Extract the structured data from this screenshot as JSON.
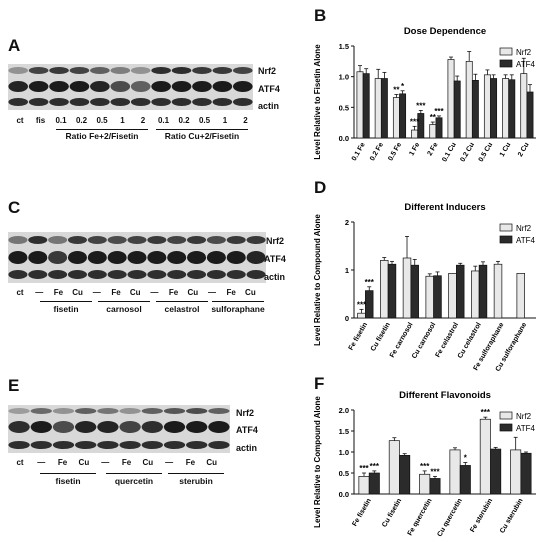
{
  "panels": {
    "A": {
      "letter": "A",
      "bands": [
        "Nrf2",
        "ATF4",
        "actin"
      ],
      "lanes": [
        "ct",
        "fis",
        "0.1",
        "0.2",
        "0.5",
        "1",
        "2",
        "0.1",
        "0.2",
        "0.5",
        "1",
        "2"
      ],
      "groups": [
        "Ratio Fe+2/Fisetin",
        "Ratio Cu+2/Fisetin"
      ]
    },
    "C": {
      "letter": "C",
      "bands": [
        "Nrf2",
        "ATF4",
        "actin"
      ],
      "lanes": [
        "ct",
        "—",
        "Fe",
        "Cu",
        "—",
        "Fe",
        "Cu",
        "—",
        "Fe",
        "Cu",
        "—",
        "Fe",
        "Cu"
      ],
      "groups": [
        "fisetin",
        "carnosol",
        "celastrol",
        "sulforaphane"
      ]
    },
    "E": {
      "letter": "E",
      "bands": [
        "Nrf2",
        "ATF4",
        "actin"
      ],
      "lanes": [
        "ct",
        "—",
        "Fe",
        "Cu",
        "—",
        "Fe",
        "Cu",
        "—",
        "Fe",
        "Cu"
      ],
      "groups": [
        "fisetin",
        "quercetin",
        "sterubin"
      ]
    },
    "B": {
      "letter": "B"
    },
    "D": {
      "letter": "D"
    },
    "F": {
      "letter": "F"
    }
  },
  "chart_data": [
    {
      "id": "B",
      "type": "bar",
      "title": "Dose Dependence",
      "ylabel": "Level Relative to Fisetin Alone",
      "ylim": [
        0,
        1.5
      ],
      "yticks": [
        "0.0",
        "0.5",
        "1.0",
        "1.5"
      ],
      "categories": [
        "0.1 Fe",
        "0.2 Fe",
        "0.5 Fe",
        "1 Fe",
        "2 Fe",
        "0.1 Cu",
        "0.2 Cu",
        "0.5 Cu",
        "1 Cu",
        "2 Cu"
      ],
      "series": [
        {
          "name": "Nrf2",
          "color": "#e8e8e8",
          "values": [
            1.08,
            0.97,
            0.66,
            0.13,
            0.22,
            1.28,
            1.25,
            1.03,
            0.97,
            1.05
          ],
          "err": [
            0.1,
            0.15,
            0.05,
            0.06,
            0.04,
            0.04,
            0.16,
            0.08,
            0.06,
            0.25
          ]
        },
        {
          "name": "ATF4",
          "color": "#2b2b2b",
          "values": [
            1.05,
            0.97,
            0.72,
            0.4,
            0.33,
            0.93,
            0.94,
            0.97,
            0.95,
            0.75
          ],
          "err": [
            0.08,
            0.1,
            0.05,
            0.05,
            0.03,
            0.08,
            0.1,
            0.06,
            0.08,
            0.12
          ]
        }
      ],
      "annotations": [
        {
          "cat": 2,
          "series": 0,
          "text": "**"
        },
        {
          "cat": 2,
          "series": 1,
          "text": "*"
        },
        {
          "cat": 3,
          "series": 0,
          "text": "***"
        },
        {
          "cat": 3,
          "series": 1,
          "text": "***"
        },
        {
          "cat": 4,
          "series": 0,
          "text": "**"
        },
        {
          "cat": 4,
          "series": 1,
          "text": "***"
        }
      ],
      "legend": "top-right"
    },
    {
      "id": "D",
      "type": "bar",
      "title": "Different Inducers",
      "ylabel": "Level Relative to Compound Alone",
      "ylim": [
        0,
        2
      ],
      "yticks": [
        "0",
        "1",
        "2"
      ],
      "categories": [
        "Fe fisetin",
        "Cu fisetin",
        "Fe carnosol",
        "Cu carnosol",
        "Fe celastrol",
        "Cu celastrol",
        "Fe sulforaphane",
        "Cu sulforaphane"
      ],
      "series": [
        {
          "name": "Nrf2",
          "color": "#e8e8e8",
          "values": [
            0.1,
            1.2,
            1.25,
            0.87,
            0.93,
            0.98,
            1.12,
            0.93
          ],
          "err": [
            0.08,
            0.06,
            0.45,
            0.05,
            0,
            0.1,
            0.06,
            0
          ]
        },
        {
          "name": "ATF4",
          "color": "#2b2b2b",
          "values": [
            0.57,
            1.12,
            1.1,
            0.88,
            1.1,
            1.1,
            null,
            null
          ],
          "err": [
            0.08,
            0.06,
            0.12,
            0.08,
            0.04,
            0.07,
            0,
            0
          ]
        }
      ],
      "annotations": [
        {
          "cat": 0,
          "series": 0,
          "text": "***"
        },
        {
          "cat": 0,
          "series": 1,
          "text": "***"
        }
      ],
      "legend": "top-right"
    },
    {
      "id": "F",
      "type": "bar",
      "title": "Different Flavonoids",
      "ylabel": "Level Relative to Compound Alone",
      "ylim": [
        0,
        2
      ],
      "yticks": [
        "0.0",
        "0.5",
        "1.0",
        "1.5",
        "2.0"
      ],
      "categories": [
        "Fe fisetin",
        "Cu fisetin",
        "Fe quercetin",
        "Cu quercetin",
        "Fe sterubin",
        "Cu sterubin"
      ],
      "series": [
        {
          "name": "Nrf2",
          "color": "#e8e8e8",
          "values": [
            0.42,
            1.27,
            0.47,
            1.05,
            1.78,
            1.05
          ],
          "err": [
            0.08,
            0.07,
            0.08,
            0.05,
            0.05,
            0.3
          ]
        },
        {
          "name": "ATF4",
          "color": "#2b2b2b",
          "values": [
            0.5,
            0.92,
            0.37,
            0.68,
            1.07,
            0.97
          ],
          "err": [
            0.05,
            0.04,
            0.05,
            0.07,
            0.04,
            0.03
          ]
        }
      ],
      "annotations": [
        {
          "cat": 0,
          "series": 0,
          "text": "***"
        },
        {
          "cat": 0,
          "series": 1,
          "text": "***"
        },
        {
          "cat": 2,
          "series": 0,
          "text": "***"
        },
        {
          "cat": 2,
          "series": 1,
          "text": "***"
        },
        {
          "cat": 3,
          "series": 1,
          "text": "*"
        },
        {
          "cat": 4,
          "series": 0,
          "text": "***"
        }
      ],
      "legend": "top-right"
    }
  ]
}
